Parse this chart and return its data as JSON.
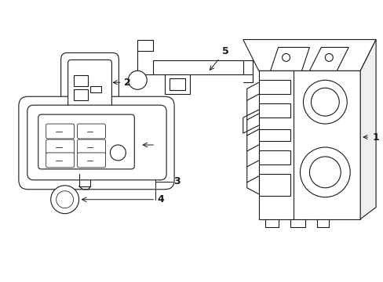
{
  "background_color": "#ffffff",
  "line_color": "#1a1a1a",
  "label_color": "#1a1a1a",
  "figsize": [
    4.89,
    3.6
  ],
  "dpi": 100,
  "lw": 0.8
}
